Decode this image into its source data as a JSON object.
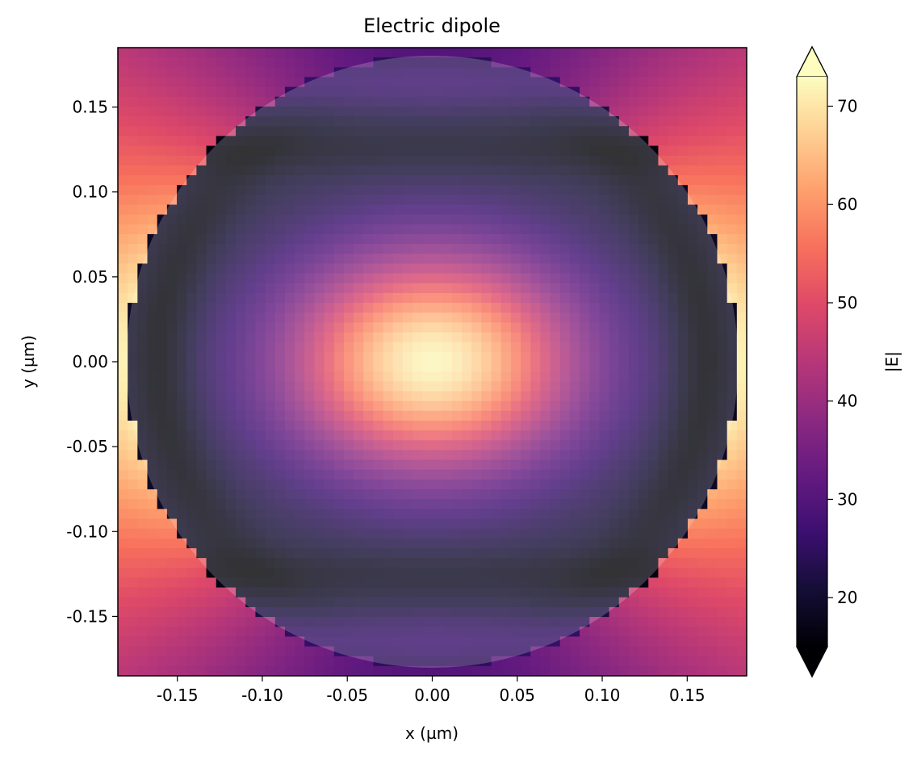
{
  "chart_data": {
    "type": "heatmap",
    "title": "Electric dipole",
    "xlabel": "x (µm)",
    "ylabel": "y (µm)",
    "colorbar_label": "|E|",
    "colormap": "magma",
    "colorbar_extend": "both",
    "xlim": [
      -0.185,
      0.185
    ],
    "ylim": [
      -0.185,
      0.185
    ],
    "clim": [
      15,
      73
    ],
    "grid_size": 64,
    "x_ticks": [
      -0.15,
      -0.1,
      -0.05,
      0.0,
      0.05,
      0.1,
      0.15
    ],
    "x_tick_labels": [
      "-0.15",
      "-0.10",
      "-0.05",
      "0.00",
      "0.05",
      "0.10",
      "0.15"
    ],
    "y_ticks": [
      -0.15,
      -0.1,
      -0.05,
      0.0,
      0.05,
      0.1,
      0.15
    ],
    "y_tick_labels": [
      "-0.15",
      "-0.10",
      "-0.05",
      "0.00",
      "0.05",
      "0.10",
      "0.15"
    ],
    "colorbar_ticks": [
      20,
      30,
      40,
      50,
      60,
      70
    ],
    "colorbar_tick_labels": [
      "20",
      "30",
      "40",
      "50",
      "60",
      "70"
    ],
    "particle_radius": 0.18,
    "particle_overlay_opacity": 0.2,
    "field_model": {
      "inside": {
        "center_value": 72,
        "node_value": 20,
        "rim_value": 22,
        "node_y": 0.125
      },
      "outside": {
        "edge_value": 72,
        "corner_value": 30
      }
    },
    "grid": false
  }
}
